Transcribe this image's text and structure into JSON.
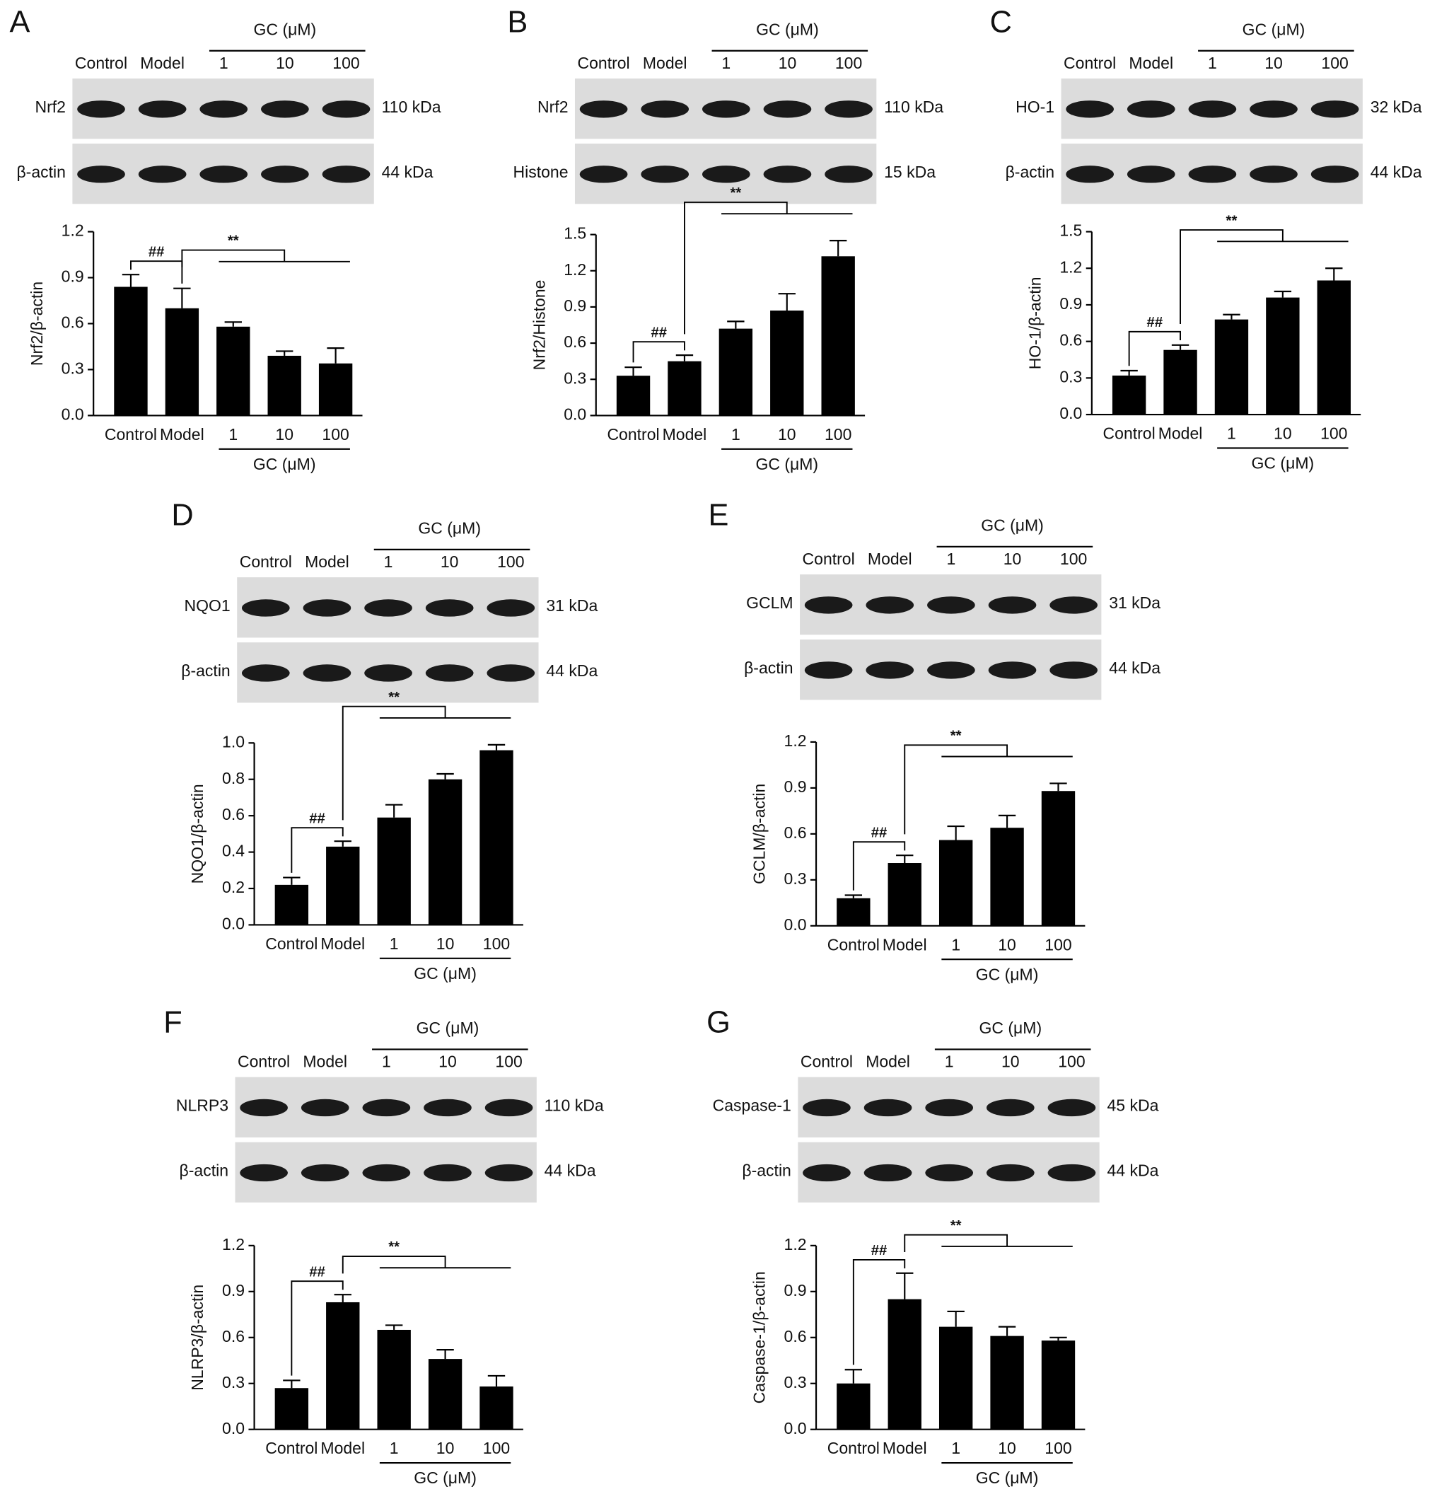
{
  "chart_data": [
    {
      "type": "bar",
      "panel": "A",
      "group_label": "GC (μM)",
      "categories": [
        "Control",
        "Model",
        "1",
        "10",
        "100"
      ],
      "blot": [
        {
          "protein": "Nrf2",
          "size": "110 kDa"
        },
        {
          "protein": "β-actin",
          "size": "44 kDa"
        }
      ],
      "ylabel": "Nrf2/β-actin",
      "values": [
        0.84,
        0.7,
        0.58,
        0.39,
        0.34
      ],
      "errors": [
        0.08,
        0.13,
        0.03,
        0.03,
        0.1
      ],
      "color": "#000000",
      "ylim": [
        0,
        1.2
      ],
      "yticks": [
        {
          "value": 0,
          "label": "0.0"
        },
        0.3,
        0.6,
        0.9,
        1.2
      ],
      "annotations": [
        "##",
        "**"
      ]
    },
    {
      "type": "bar",
      "panel": "B",
      "group_label": "GC (μM)",
      "categories": [
        "Control",
        "Model",
        "1",
        "10",
        "100"
      ],
      "blot": [
        {
          "protein": "Nrf2",
          "size": "110 kDa"
        },
        {
          "protein": "Histone",
          "size": "15 kDa"
        }
      ],
      "ylabel": "Nrf2/Histone",
      "values": [
        0.33,
        0.45,
        0.72,
        0.87,
        1.32
      ],
      "errors": [
        0.07,
        0.05,
        0.06,
        0.14,
        0.13
      ],
      "color": "#000000",
      "ylim": [
        0,
        1.5
      ],
      "yticks": [
        {
          "value": 0,
          "label": "0.0"
        },
        0.3,
        0.6,
        0.9,
        1.2,
        1.5
      ],
      "annotations": [
        "##",
        "**"
      ]
    },
    {
      "type": "bar",
      "panel": "C",
      "group_label": "GC (μM)",
      "categories": [
        "Control",
        "Model",
        "1",
        "10",
        "100"
      ],
      "blot": [
        {
          "protein": "HO-1",
          "size": "32 kDa"
        },
        {
          "protein": "β-actin",
          "size": "44 kDa"
        }
      ],
      "ylabel": "HO-1/β-actin",
      "values": [
        0.32,
        0.53,
        0.78,
        0.96,
        1.1
      ],
      "errors": [
        0.04,
        0.04,
        0.04,
        0.05,
        0.1
      ],
      "color": "#000000",
      "ylim": [
        0,
        1.5
      ],
      "yticks": [
        {
          "value": 0,
          "label": "0.0"
        },
        0.3,
        0.6,
        0.9,
        1.2,
        1.5
      ],
      "annotations": [
        "##",
        "**"
      ]
    },
    {
      "type": "bar",
      "panel": "D",
      "group_label": "GC (μM)",
      "categories": [
        "Control",
        "Model",
        "1",
        "10",
        "100"
      ],
      "blot": [
        {
          "protein": "NQO1",
          "size": "31 kDa"
        },
        {
          "protein": "β-actin",
          "size": "44 kDa"
        }
      ],
      "ylabel": "NQO1/β-actin",
      "values": [
        0.22,
        0.43,
        0.59,
        0.8,
        0.96
      ],
      "errors": [
        0.04,
        0.03,
        0.07,
        0.03,
        0.03
      ],
      "color": "#000000",
      "ylim": [
        0,
        1
      ],
      "yticks": [
        {
          "value": 0,
          "label": "0.0"
        },
        0.2,
        0.4,
        0.6,
        0.8,
        {
          "value": 1,
          "label": "1.0"
        }
      ],
      "annotations": [
        "##",
        "**"
      ]
    },
    {
      "type": "bar",
      "panel": "E",
      "group_label": "GC (μM)",
      "categories": [
        "Control",
        "Model",
        "1",
        "10",
        "100"
      ],
      "blot": [
        {
          "protein": "GCLM",
          "size": "31 kDa"
        },
        {
          "protein": "β-actin",
          "size": "44 kDa"
        }
      ],
      "ylabel": "GCLM/β-actin",
      "values": [
        0.18,
        0.41,
        0.56,
        0.64,
        0.88
      ],
      "errors": [
        0.02,
        0.05,
        0.09,
        0.08,
        0.05
      ],
      "color": "#000000",
      "ylim": [
        0,
        1.2
      ],
      "yticks": [
        {
          "value": 0,
          "label": "0.0"
        },
        0.3,
        0.6,
        0.9,
        1.2
      ],
      "annotations": [
        "##",
        "**"
      ]
    },
    {
      "type": "bar",
      "panel": "F",
      "group_label": "GC (μM)",
      "categories": [
        "Control",
        "Model",
        "1",
        "10",
        "100"
      ],
      "blot": [
        {
          "protein": "NLRP3",
          "size": "110 kDa"
        },
        {
          "protein": "β-actin",
          "size": "44 kDa"
        }
      ],
      "ylabel": "NLRP3/β-actin",
      "values": [
        0.27,
        0.83,
        0.65,
        0.46,
        0.28
      ],
      "errors": [
        0.05,
        0.05,
        0.03,
        0.06,
        0.07
      ],
      "color": "#000000",
      "ylim": [
        0,
        1.2
      ],
      "yticks": [
        {
          "value": 0,
          "label": "0.0"
        },
        0.3,
        0.6,
        0.9,
        1.2
      ],
      "annotations": [
        "##",
        "**"
      ]
    },
    {
      "type": "bar",
      "panel": "G",
      "group_label": "GC (μM)",
      "categories": [
        "Control",
        "Model",
        "1",
        "10",
        "100"
      ],
      "blot": [
        {
          "protein": "Caspase-1",
          "size": "45 kDa"
        },
        {
          "protein": "β-actin",
          "size": "44 kDa"
        }
      ],
      "ylabel": "Caspase-1/β-actin",
      "values": [
        0.3,
        0.85,
        0.67,
        0.61,
        0.58
      ],
      "errors": [
        0.09,
        0.17,
        0.1,
        0.06,
        0.02
      ],
      "color": "#000000",
      "ylim": [
        0,
        1.2
      ],
      "yticks": [
        {
          "value": 0,
          "label": "0.0"
        },
        0.3,
        0.6,
        0.9,
        1.2
      ],
      "annotations": [
        "##",
        "**"
      ]
    }
  ]
}
